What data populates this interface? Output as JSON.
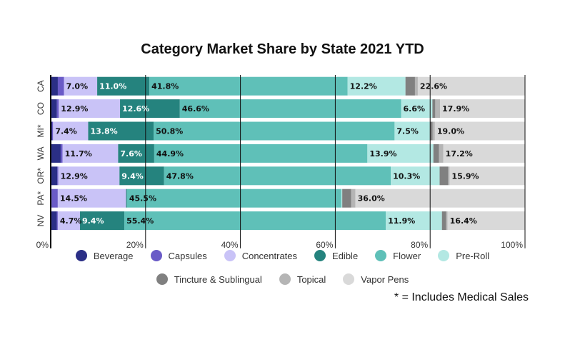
{
  "chart_data": {
    "type": "bar",
    "orientation": "horizontal",
    "stacked": true,
    "title": "Category Market Share by State 2021 YTD",
    "categories": [
      "CA",
      "CO",
      "MI*",
      "WA",
      "OR*",
      "PA*",
      "NV"
    ],
    "xlim": [
      0,
      100
    ],
    "xticks": [
      "0%",
      "20%",
      "40%",
      "60%",
      "80%",
      "100%"
    ],
    "grid": "vertical",
    "legend_position": "bottom",
    "series": [
      {
        "name": "Beverage",
        "color": "#2b2f86",
        "values": [
          1.5,
          1.3,
          0.3,
          2.1,
          1.4,
          0.2,
          1.3
        ],
        "labels": [
          "",
          "",
          "",
          "",
          "",
          "",
          ""
        ]
      },
      {
        "name": "Capsules",
        "color": "#6a5bc7",
        "values": [
          1.3,
          0.4,
          0.2,
          0.4,
          0.2,
          1.3,
          0.2
        ],
        "labels": [
          "",
          "",
          "",
          "",
          "",
          "",
          ""
        ]
      },
      {
        "name": "Concentrates",
        "color": "#c9c3f7",
        "values": [
          7.0,
          12.9,
          7.4,
          11.7,
          12.9,
          14.5,
          4.7
        ],
        "labels": [
          "7.0%",
          "12.9%",
          "7.4%",
          "11.7%",
          "12.9%",
          "14.5%",
          "4.7%"
        ]
      },
      {
        "name": "Edible",
        "color": "#25837e",
        "values": [
          11.0,
          12.6,
          13.8,
          7.6,
          9.4,
          0.2,
          9.4
        ],
        "labels": [
          "11.0%",
          "12.6%",
          "13.8%",
          "7.6%",
          "9.4%",
          "",
          "9.4%"
        ]
      },
      {
        "name": "Flower",
        "color": "#5fc0b8",
        "values": [
          41.8,
          46.6,
          50.8,
          44.9,
          47.8,
          45.5,
          55.4
        ],
        "labels": [
          "41.8%",
          "46.6%",
          "50.8%",
          "44.9%",
          "47.8%",
          "45.5%",
          "55.4%"
        ]
      },
      {
        "name": "Pre-Roll",
        "color": "#b3e8e3",
        "values": [
          12.2,
          6.6,
          7.5,
          13.9,
          10.3,
          0.2,
          11.9
        ],
        "labels": [
          "12.2%",
          "6.6%",
          "7.5%",
          "13.9%",
          "10.3%",
          "",
          "11.9%"
        ]
      },
      {
        "name": "Tincture & Sublingual",
        "color": "#808080",
        "values": [
          2.0,
          0.6,
          0.5,
          1.2,
          1.8,
          1.9,
          0.9
        ],
        "labels": [
          "",
          "",
          "",
          "",
          "",
          "",
          ""
        ]
      },
      {
        "name": "Topical",
        "color": "#b5b5b5",
        "values": [
          0.6,
          1.0,
          0.5,
          0.9,
          0.3,
          0.9,
          0.3
        ],
        "labels": [
          "",
          "",
          "",
          "",
          "",
          "",
          ""
        ]
      },
      {
        "name": "Vapor Pens",
        "color": "#d9d9d9",
        "values": [
          22.6,
          17.9,
          19.0,
          17.2,
          15.9,
          36.0,
          16.4
        ],
        "labels": [
          "22.6%",
          "17.9%",
          "19.0%",
          "17.2%",
          "15.9%",
          "36.0%",
          "16.4%"
        ]
      }
    ],
    "footnote": "* = Includes Medical Sales"
  }
}
